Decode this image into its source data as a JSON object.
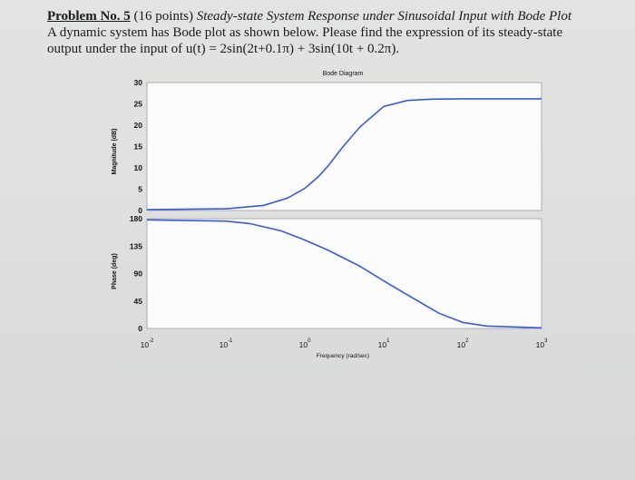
{
  "problem": {
    "number_label": "Problem No. 5",
    "points": "(16 points)",
    "title": "Steady-state System Response under Sinusoidal Input with Bode Plot",
    "line2": "A dynamic system has Bode plot as shown below. Please find the expression of its steady-state",
    "line3_prefix": "output under the input of",
    "input_expression": "u(t) = 2sin(2t+0.1π) + 3sin(10t + 0.2π)."
  },
  "chart_data": [
    {
      "type": "line",
      "title": "Bode Diagram",
      "ylabel": "Magnitude (dB)",
      "xlabel": "",
      "x_scale": "log",
      "xlim": [
        0.01,
        1000
      ],
      "ylim": [
        0,
        30
      ],
      "yticks": [
        0,
        5,
        10,
        15,
        20,
        25,
        30
      ],
      "series": [
        {
          "x": [
            0.01,
            0.1,
            0.3,
            0.6,
            1,
            1.5,
            2,
            3,
            5,
            10,
            20,
            40,
            100,
            1000
          ],
          "values": [
            0.2,
            0.4,
            1.2,
            2.9,
            5.2,
            8.0,
            10.6,
            14.8,
            19.6,
            24.4,
            25.8,
            26.1,
            26.2,
            26.2
          ]
        }
      ]
    },
    {
      "type": "line",
      "ylabel": "Phase (deg)",
      "xlabel": "Frequency (rad/sec)",
      "x_scale": "log",
      "xlim": [
        0.01,
        1000
      ],
      "ylim": [
        0,
        180
      ],
      "yticks": [
        0,
        45,
        90,
        135,
        180
      ],
      "xticks": [
        "10-2",
        "10-1",
        "100",
        "101",
        "102",
        "103"
      ],
      "series": [
        {
          "x": [
            0.01,
            0.1,
            0.2,
            0.5,
            1,
            2,
            5,
            10,
            20,
            50,
            100,
            200,
            1000
          ],
          "values": [
            178,
            176,
            172,
            160,
            145,
            128,
            102,
            78,
            55,
            25,
            10,
            4,
            1
          ]
        }
      ]
    }
  ]
}
